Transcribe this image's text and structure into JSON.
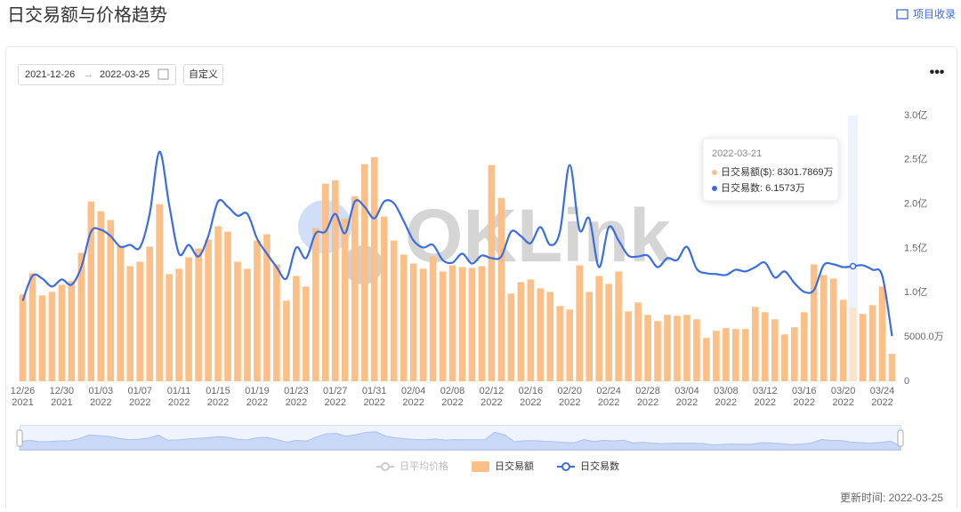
{
  "header": {
    "title": "日交易额与价格趋势",
    "link": "项目收录"
  },
  "filters": {
    "start": "2021-12-26",
    "end": "2022-03-25",
    "custom": "自定义"
  },
  "footer": {
    "updated": "更新时间: 2022-03-25"
  },
  "watermark": "OKLink",
  "tooltip": {
    "title": "2022-03-21",
    "items": [
      "日交易额($): 8301.7869万",
      "日交易数: 6.1573万"
    ]
  },
  "chart_data": {
    "type": "bar",
    "categories": [
      "12/26\n2021",
      null,
      null,
      null,
      "12/30\n2021",
      null,
      null,
      null,
      "01/03\n2022",
      null,
      null,
      null,
      "01/07\n2022",
      null,
      null,
      null,
      "01/11\n2022",
      null,
      null,
      null,
      "01/15\n2022",
      null,
      null,
      null,
      "01/19\n2022",
      null,
      null,
      null,
      "01/23\n2022",
      null,
      null,
      null,
      "01/27\n2022",
      null,
      null,
      null,
      "01/31\n2022",
      null,
      null,
      null,
      "02/04\n2022",
      null,
      null,
      null,
      "02/08\n2022",
      null,
      null,
      null,
      "02/12\n2022",
      null,
      null,
      null,
      "02/16\n2022",
      null,
      null,
      null,
      "02/20\n2022",
      null,
      null,
      null,
      "02/24\n2022",
      null,
      null,
      null,
      "02/28\n2022",
      null,
      null,
      null,
      "03/04\n2022",
      null,
      null,
      null,
      "03/08\n2022",
      null,
      null,
      null,
      "03/12\n2022",
      null,
      null,
      null,
      "03/16\n2022",
      null,
      null,
      null,
      "03/20\n2022",
      null,
      null,
      null,
      "03/24\n2022",
      null
    ],
    "series": [
      {
        "name": "日交易额",
        "type": "bar",
        "color": "#fcbf87",
        "values": [
          9800,
          12200,
          9700,
          10100,
          10900,
          11300,
          14500,
          20300,
          19200,
          18200,
          15300,
          13000,
          13500,
          15200,
          20000,
          12100,
          12700,
          14000,
          15000,
          16000,
          17500,
          16900,
          13500,
          12700,
          15900,
          16600,
          13200,
          9100,
          11900,
          10700,
          17300,
          22300,
          22700,
          18400,
          20900,
          24500,
          25300,
          18600,
          15900,
          14300,
          13300,
          12700,
          14100,
          12400,
          13100,
          12900,
          12800,
          13000,
          24400,
          20700,
          9900,
          11200,
          11500,
          10500,
          10100,
          8500,
          8100,
          13100,
          10100,
          11900,
          11000,
          12400,
          7900,
          8900,
          7500,
          6800,
          7500,
          7400,
          7500,
          7000,
          4900,
          5700,
          6000,
          5900,
          5900,
          8400,
          7800,
          7000,
          5300,
          6100,
          7800,
          13200,
          12000,
          11600,
          9200,
          8301.7869,
          7600,
          8600,
          10700,
          3100
        ]
      },
      {
        "name": "日交易数",
        "type": "line",
        "axis": "y2",
        "color": "#3b6de0",
        "values": [
          4.31,
          5.64,
          5.5,
          5.07,
          5.45,
          5.17,
          6.11,
          8.01,
          8.11,
          7.77,
          7.2,
          7.3,
          7.16,
          8.96,
          12.28,
          9.43,
          6.83,
          7.3,
          6.68,
          7.77,
          9.62,
          9.34,
          8.86,
          8.96,
          7.63,
          6.83,
          6.11,
          5.5,
          7.16,
          6.59,
          7.92,
          8.01,
          8.96,
          7.92,
          9.62,
          9.34,
          8.72,
          9.62,
          9.53,
          8.58,
          7.54,
          7.16,
          7.3,
          6.49,
          6.35,
          6.83,
          6.3,
          6.73,
          6.59,
          6.68,
          8.01,
          7.77,
          7.39,
          8.25,
          7.3,
          8.01,
          11.57,
          8.11,
          8.72,
          6.11,
          8.25,
          7.54,
          6.73,
          6.68,
          6.73,
          6.11,
          6.59,
          6.49,
          7.2,
          6.02,
          5.78,
          5.74,
          5.69,
          5.97,
          5.88,
          6.11,
          6.35,
          5.55,
          5.88,
          5.26,
          4.79,
          4.88,
          6.21,
          6.26,
          6.11,
          6.1573,
          6.21,
          5.97,
          5.64,
          2.42
        ]
      }
    ],
    "hidden_series": [
      "日平均价格"
    ],
    "ylim": [
      0,
      30000
    ],
    "yticks": [
      0,
      {
        "value": 5000,
        "label": "5000.0万"
      },
      {
        "value": 10000,
        "label": "1.0亿"
      },
      {
        "value": 15000,
        "label": "1.5亿"
      },
      {
        "value": 20000,
        "label": "2.0亿"
      },
      {
        "value": 25000,
        "label": "2.5亿"
      },
      {
        "value": 30000,
        "label": "3.0亿"
      }
    ],
    "y2lim": [
      0,
      14.22
    ],
    "grid": false
  }
}
